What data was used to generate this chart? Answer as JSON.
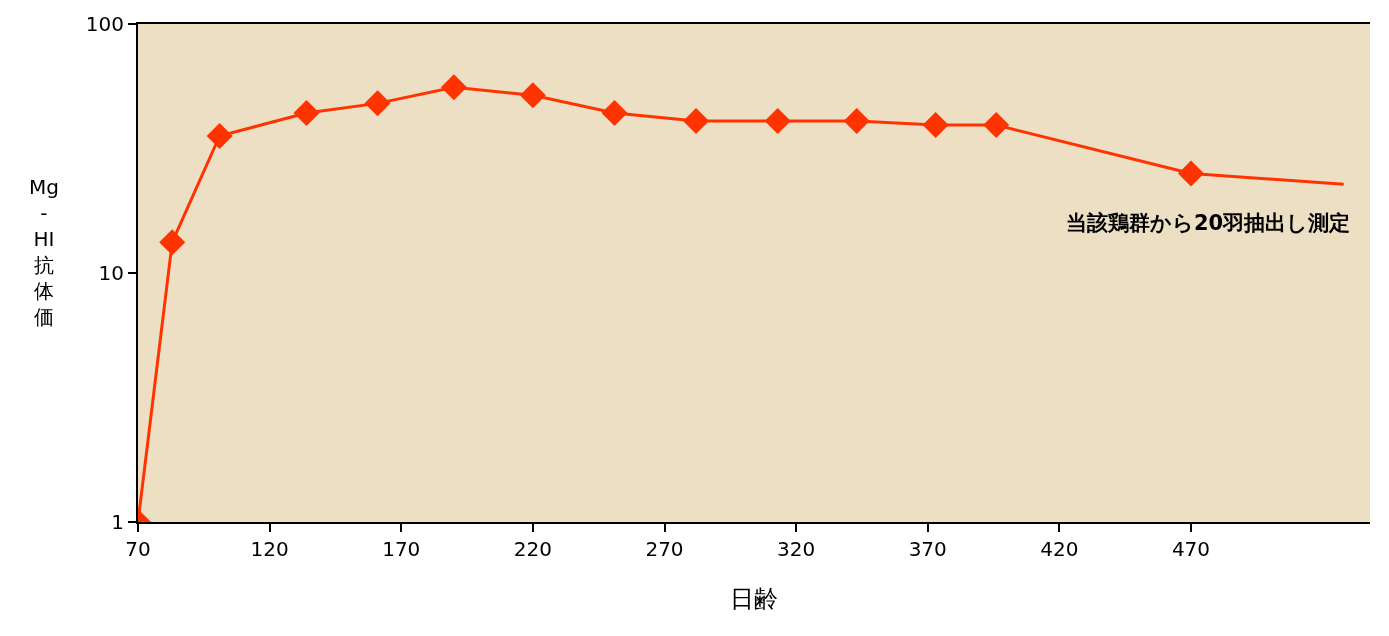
{
  "chart_data": {
    "type": "line",
    "xlabel": "日齢",
    "ylabel": "Mg-HI抗体価",
    "xlim": [
      70,
      538
    ],
    "xticks": [
      70,
      120,
      170,
      220,
      270,
      320,
      370,
      420,
      470
    ],
    "ylim": [
      1,
      100
    ],
    "yticks": [
      1,
      10,
      100
    ],
    "log": "y",
    "grid": false,
    "annotations": [
      "当該鶏群から20羽抽出し測定"
    ],
    "series": [
      {
        "color": "#ff3300",
        "marker": "diamond",
        "x": [
          70,
          83,
          101,
          134,
          161,
          190,
          220,
          251,
          282,
          313,
          343,
          373,
          396,
          470
        ],
        "values": [
          1,
          13.3,
          35.5,
          43.9,
          48,
          55.7,
          51.7,
          43.9,
          40.8,
          40.8,
          40.8,
          39.3,
          39.3,
          25.1
        ]
      },
      {
        "color": "#ff3300",
        "marker": "none",
        "x": [
          470,
          528
        ],
        "values": [
          25.1,
          22.7
        ]
      }
    ]
  }
}
